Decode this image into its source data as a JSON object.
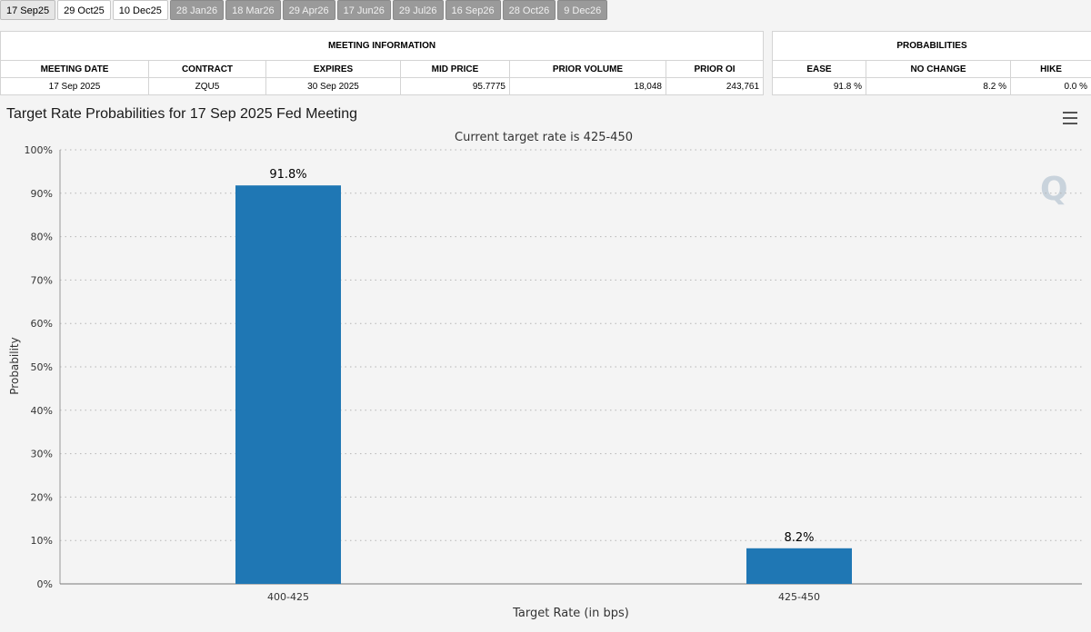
{
  "tabs": [
    {
      "label": "17 Sep25",
      "state": "selected"
    },
    {
      "label": "29 Oct25",
      "state": "white"
    },
    {
      "label": "10 Dec25",
      "state": "white"
    },
    {
      "label": "28 Jan26",
      "state": "gray"
    },
    {
      "label": "18 Mar26",
      "state": "gray"
    },
    {
      "label": "29 Apr26",
      "state": "gray"
    },
    {
      "label": "17 Jun26",
      "state": "gray"
    },
    {
      "label": "29 Jul26",
      "state": "gray"
    },
    {
      "label": "16 Sep26",
      "state": "gray"
    },
    {
      "label": "28 Oct26",
      "state": "gray"
    },
    {
      "label": "9 Dec26",
      "state": "gray"
    }
  ],
  "meeting_info": {
    "heading": "MEETING INFORMATION",
    "columns": [
      "MEETING DATE",
      "CONTRACT",
      "EXPIRES",
      "MID PRICE",
      "PRIOR VOLUME",
      "PRIOR OI"
    ],
    "row": [
      "17 Sep 2025",
      "ZQU5",
      "30 Sep 2025",
      "95.7775",
      "18,048",
      "243,761"
    ]
  },
  "probabilities": {
    "heading": "PROBABILITIES",
    "columns": [
      "EASE",
      "NO CHANGE",
      "HIKE"
    ],
    "row": [
      "91.8 %",
      "8.2 %",
      "0.0 %"
    ]
  },
  "chart_title": "Target Rate Probabilities for 17 Sep 2025 Fed Meeting",
  "watermark": "Q",
  "chart_data": {
    "type": "bar",
    "subtitle": "Current target rate is 425-450",
    "categories": [
      "400-425",
      "425-450"
    ],
    "values": [
      91.8,
      8.2
    ],
    "data_labels": [
      "91.8%",
      "8.2%"
    ],
    "xlabel": "Target Rate (in bps)",
    "ylabel": "Probability",
    "ylim": [
      0,
      100
    ],
    "yticks": [
      "0%",
      "10%",
      "20%",
      "30%",
      "40%",
      "50%",
      "60%",
      "70%",
      "80%",
      "90%",
      "100%"
    ],
    "grid": true,
    "bar_color": "#1f77b4"
  }
}
